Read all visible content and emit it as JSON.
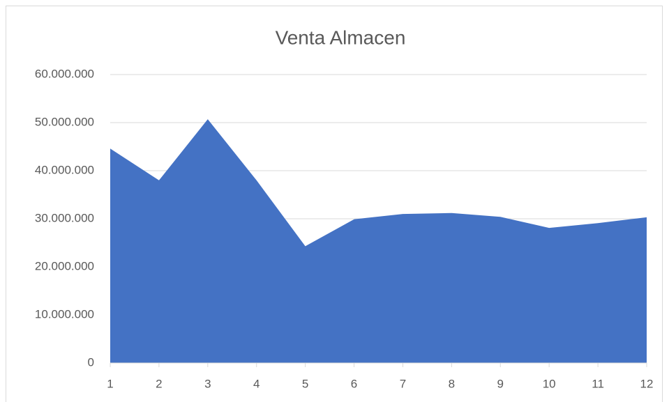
{
  "chart_data": {
    "type": "area",
    "title": "Venta Almacen",
    "x": [
      1,
      2,
      3,
      4,
      5,
      6,
      7,
      8,
      9,
      10,
      11,
      12
    ],
    "series": [
      {
        "color": "#4472c4",
        "values": [
          44600000,
          38000000,
          50700000,
          38000000,
          24300000,
          29900000,
          31000000,
          31200000,
          30400000,
          28100000,
          29100000,
          30300000
        ]
      }
    ],
    "xlim": [
      1,
      12
    ],
    "xticks": [
      1,
      2,
      3,
      4,
      5,
      6,
      7,
      8,
      9,
      10,
      11,
      12
    ],
    "ylim": [
      0,
      60000000
    ],
    "yticks": [
      0,
      {
        "value": 10000000,
        "label": "10.000.000"
      },
      {
        "value": 20000000,
        "label": "20.000.000"
      },
      {
        "value": 30000000,
        "label": "30.000.000"
      },
      {
        "value": 40000000,
        "label": "40.000.000"
      },
      {
        "value": 50000000,
        "label": "50.000.000"
      },
      {
        "value": 60000000,
        "label": "60.000.000"
      }
    ],
    "grid": true
  }
}
